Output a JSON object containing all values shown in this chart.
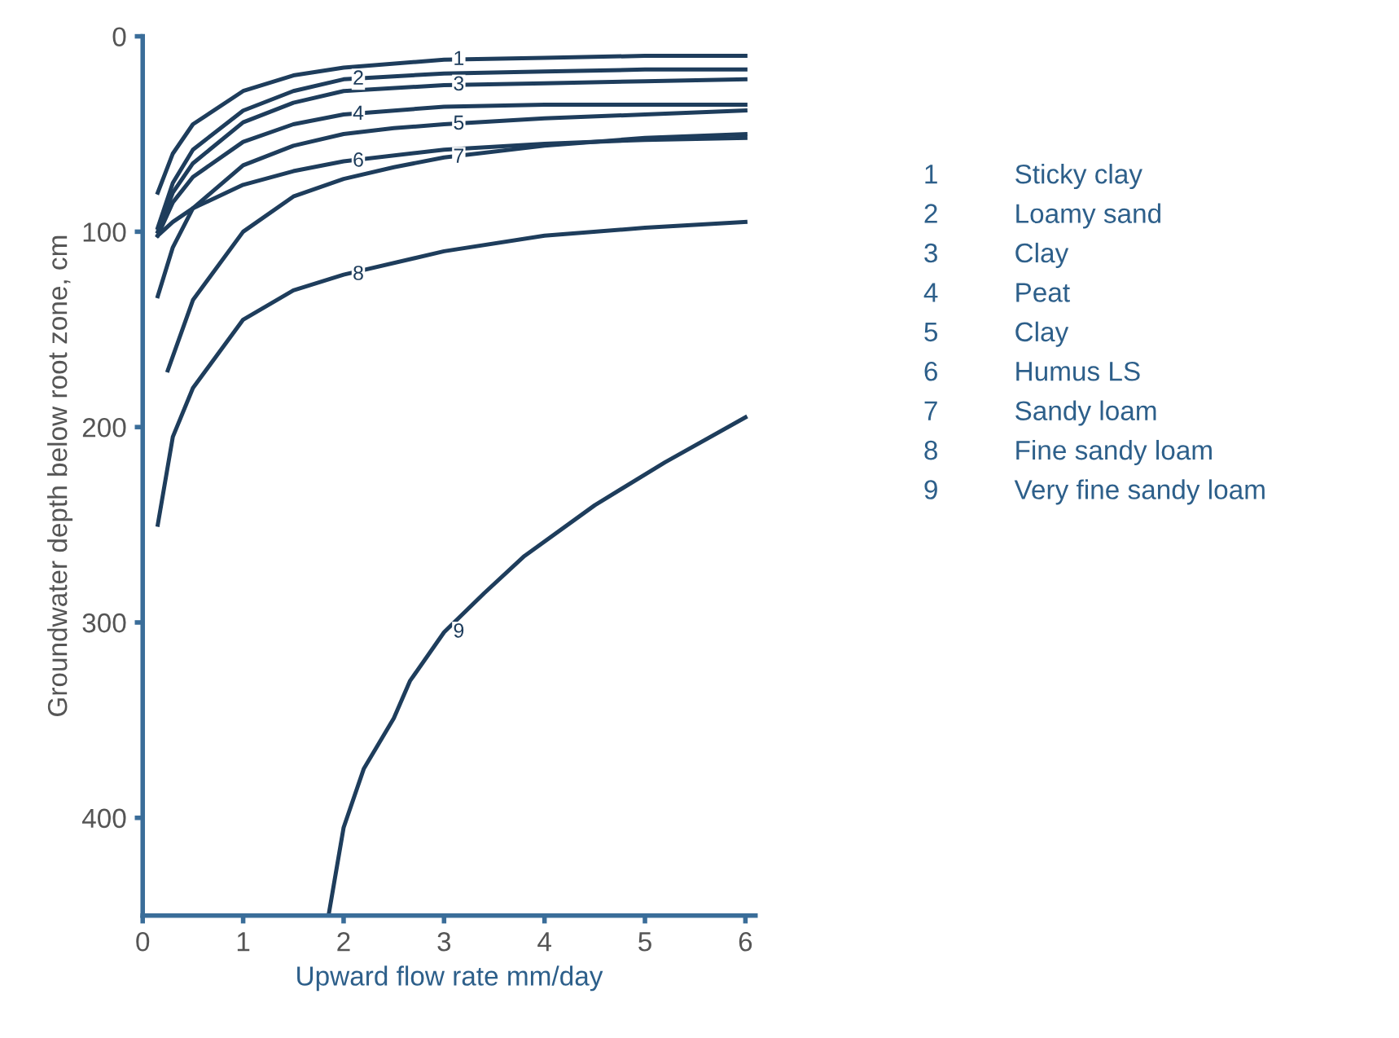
{
  "chart_data": {
    "type": "line",
    "xlabel": "Upward flow rate mm/day",
    "ylabel": "Groundwater depth below root zone, cm",
    "xlim": [
      0,
      6.1
    ],
    "ylim": [
      450,
      0
    ],
    "xticks": [
      0,
      1,
      2,
      3,
      4,
      5,
      6
    ],
    "yticks": [
      0,
      100,
      200,
      300,
      400
    ],
    "grid": false,
    "marker": "none",
    "line_style": "solid",
    "series": [
      {
        "name": "1",
        "color": "#1e3d5c",
        "x": [
          0.15,
          0.3,
          0.5,
          1,
          1.5,
          2,
          3,
          4,
          5,
          6
        ],
        "values": [
          80,
          60,
          45,
          28,
          20,
          16,
          12,
          11,
          10,
          10
        ]
      },
      {
        "name": "2",
        "color": "#1e3d5c",
        "x": [
          0.15,
          0.3,
          0.5,
          1,
          1.5,
          2,
          3,
          4,
          5,
          6
        ],
        "values": [
          98,
          75,
          58,
          38,
          28,
          22,
          19,
          18,
          17,
          17
        ]
      },
      {
        "name": "3",
        "color": "#1e3d5c",
        "x": [
          0.15,
          0.3,
          0.5,
          1,
          1.5,
          2,
          3,
          4,
          5,
          6
        ],
        "values": [
          100,
          80,
          65,
          44,
          34,
          28,
          25,
          24,
          23,
          22
        ]
      },
      {
        "name": "4",
        "color": "#1e3d5c",
        "x": [
          0.15,
          0.3,
          0.5,
          1,
          1.5,
          2,
          3,
          4,
          5,
          6
        ],
        "values": [
          102,
          85,
          72,
          54,
          45,
          40,
          36,
          35,
          35,
          35
        ]
      },
      {
        "name": "5",
        "color": "#1e3d5c",
        "x": [
          0.15,
          0.3,
          0.5,
          1,
          1.5,
          2,
          2.5,
          3,
          4,
          5,
          6
        ],
        "values": [
          133,
          108,
          88,
          66,
          56,
          50,
          47,
          45,
          42,
          40,
          38
        ]
      },
      {
        "name": "6",
        "color": "#1e3d5c",
        "x": [
          0.15,
          0.3,
          0.5,
          1,
          1.5,
          2,
          3,
          4,
          5,
          6
        ],
        "values": [
          102,
          95,
          88,
          76,
          69,
          64,
          58,
          55,
          53,
          52
        ]
      },
      {
        "name": "7",
        "color": "#1e3d5c",
        "x": [
          0.25,
          0.5,
          1,
          1.5,
          2,
          2.5,
          3,
          4,
          5,
          6
        ],
        "values": [
          171,
          135,
          100,
          82,
          73,
          67,
          62,
          56,
          52,
          50
        ]
      },
      {
        "name": "8",
        "color": "#1e3d5c",
        "x": [
          0.15,
          0.3,
          0.5,
          1,
          1.5,
          2,
          3,
          4,
          5,
          6
        ],
        "values": [
          250,
          205,
          180,
          145,
          130,
          122,
          110,
          102,
          98,
          95
        ]
      },
      {
        "name": "9",
        "color": "#1e3d5c",
        "x": [
          1.85,
          2,
          2.2,
          2.5,
          2.66,
          3,
          3.4,
          3.8,
          4.5,
          5.2,
          6
        ],
        "values": [
          450,
          405,
          375,
          349,
          330,
          305,
          285,
          266,
          240,
          218,
          195
        ]
      }
    ],
    "annotations": [
      "Sticky clay",
      "Loamy sand",
      "Clay",
      "Peat",
      "Clay",
      "Humus LS",
      "Sandy loam",
      "Fine sandy loam",
      "Very fine sandy loam"
    ]
  }
}
